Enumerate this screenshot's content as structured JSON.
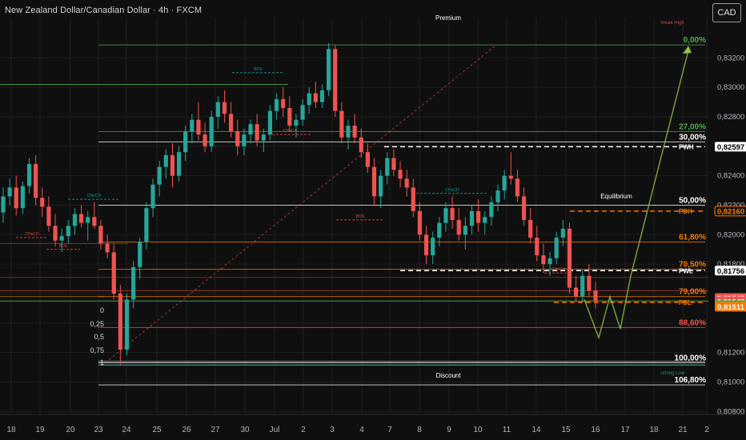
{
  "header": {
    "title": "New Zealand Dollar/Canadian Dollar · 4h · FXCM",
    "currency_button": "CAD"
  },
  "colors": {
    "bull": "#26a69a",
    "bear": "#ef5350",
    "orange": "#f57c00",
    "green_line": "#4caf50",
    "white_line": "#d6d6d6",
    "projection": "#8bc34a"
  },
  "zones": {
    "premium": "Premium",
    "equilibrium": "Equilibrium",
    "discount": "Discount"
  },
  "fib_levels": [
    {
      "label": "0,00%",
      "price": 0.83288,
      "color": "#4caf50"
    },
    {
      "label": "27,00%",
      "price": 0.827,
      "color": "#4caf50"
    },
    {
      "label": "30,00%",
      "price": 0.8263,
      "color": "#ffffff"
    },
    {
      "label": "50,00%",
      "price": 0.822,
      "color": "#ffffff"
    },
    {
      "label": "61,80%",
      "price": 0.8195,
      "color": "#f57c00"
    },
    {
      "label": "70,50%",
      "price": 0.81765,
      "color": "#f57c00"
    },
    {
      "label": "79,00%",
      "price": 0.8158,
      "color": "#f57c00"
    },
    {
      "label": "88,60%",
      "price": 0.8137,
      "color": "#ef5350"
    },
    {
      "label": "100,00%",
      "price": 0.8113,
      "color": "#ffffff"
    },
    {
      "label": "106,80%",
      "price": 0.8098,
      "color": "#ffffff"
    }
  ],
  "liquidity_labels": {
    "weak_high": "Weak High",
    "strong_low": "Strong Low",
    "pwh": "PWH",
    "pdh": "PDH",
    "pwl": "PWL",
    "pdl": "PDL"
  },
  "structure_labels": {
    "bos": "BOS",
    "choch": "CHoCH"
  },
  "left_fib_labels": [
    "0",
    "0,25",
    "0,5",
    "0,75",
    "1"
  ],
  "price_axis": {
    "ticks": [
      "0,83200",
      "0,83000",
      "0,82800",
      "0,82400",
      "0,82200",
      "0,82000",
      "0,81800",
      "0,81200",
      "0,81000",
      "0,80800"
    ]
  },
  "price_badges": [
    {
      "text": "0,82597",
      "price": 0.82597,
      "bg": "#ffffff",
      "fg": "#000000"
    },
    {
      "text": "0,82160",
      "price": 0.8216,
      "bg": "#131313",
      "fg": "#f57c00",
      "border": "#f57c00"
    },
    {
      "text": "0,81756",
      "price": 0.81756,
      "bg": "#ffffff",
      "fg": "#000000"
    },
    {
      "text": "0,81547",
      "price": 0.8157,
      "bg": "#ef5350",
      "fg": "#ffffff",
      "sub": "19:01"
    },
    {
      "text": "0,81547",
      "price": 0.81547,
      "bg": "#ef5350",
      "fg": "#ffffff"
    },
    {
      "text": "0,81522",
      "price": 0.81522,
      "bg": "#4caf50",
      "fg": "#ffffff"
    },
    {
      "text": "0,81511",
      "price": 0.81511,
      "bg": "#f57c00",
      "fg": "#ffffff"
    }
  ],
  "time_axis": [
    "18",
    "19",
    "20",
    "23",
    "24",
    "25",
    "26",
    "27",
    "30",
    "Jul",
    "2",
    "3",
    "4",
    "7",
    "8",
    "9",
    "10",
    "11",
    "14",
    "15",
    "16",
    "17",
    "18",
    "21",
    "2"
  ],
  "chart_data": {
    "type": "candlestick",
    "ylim": [
      0.8078,
      0.8343
    ],
    "candles_note": "approximate 4h candles read from screenshot",
    "candles": [
      [
        0.8215,
        0.8232,
        0.8208,
        0.8226
      ],
      [
        0.8226,
        0.8238,
        0.822,
        0.8232
      ],
      [
        0.8232,
        0.824,
        0.8213,
        0.8218
      ],
      [
        0.8218,
        0.8236,
        0.8214,
        0.8233
      ],
      [
        0.8233,
        0.8252,
        0.8228,
        0.8248
      ],
      [
        0.8248,
        0.8254,
        0.822,
        0.8225
      ],
      [
        0.8225,
        0.8232,
        0.8212,
        0.8219
      ],
      [
        0.8219,
        0.8226,
        0.8202,
        0.8206
      ],
      [
        0.8206,
        0.8214,
        0.8192,
        0.8196
      ],
      [
        0.8196,
        0.8204,
        0.8188,
        0.8199
      ],
      [
        0.8199,
        0.821,
        0.8194,
        0.8206
      ],
      [
        0.8206,
        0.8218,
        0.82,
        0.8214
      ],
      [
        0.8214,
        0.822,
        0.8205,
        0.8208
      ],
      [
        0.8208,
        0.8216,
        0.8196,
        0.8212
      ],
      [
        0.8212,
        0.8222,
        0.8204,
        0.8206
      ],
      [
        0.8206,
        0.821,
        0.819,
        0.8194
      ],
      [
        0.8194,
        0.82,
        0.8184,
        0.8188
      ],
      [
        0.8188,
        0.8194,
        0.8156,
        0.816
      ],
      [
        0.816,
        0.8166,
        0.8112,
        0.8122
      ],
      [
        0.8122,
        0.816,
        0.8118,
        0.8156
      ],
      [
        0.8156,
        0.8182,
        0.815,
        0.8178
      ],
      [
        0.8178,
        0.8198,
        0.817,
        0.8195
      ],
      [
        0.8195,
        0.8222,
        0.819,
        0.8218
      ],
      [
        0.8218,
        0.8238,
        0.8212,
        0.8234
      ],
      [
        0.8234,
        0.825,
        0.8226,
        0.8246
      ],
      [
        0.8246,
        0.8258,
        0.8238,
        0.8254
      ],
      [
        0.8254,
        0.8262,
        0.8232,
        0.824
      ],
      [
        0.824,
        0.826,
        0.8236,
        0.8256
      ],
      [
        0.8256,
        0.8274,
        0.825,
        0.827
      ],
      [
        0.827,
        0.8282,
        0.8262,
        0.8278
      ],
      [
        0.8278,
        0.829,
        0.8264,
        0.8268
      ],
      [
        0.8268,
        0.8276,
        0.8256,
        0.826
      ],
      [
        0.826,
        0.8284,
        0.8256,
        0.828
      ],
      [
        0.828,
        0.8294,
        0.8272,
        0.829
      ],
      [
        0.829,
        0.8298,
        0.8276,
        0.8282
      ],
      [
        0.8282,
        0.829,
        0.8266,
        0.827
      ],
      [
        0.827,
        0.8278,
        0.8254,
        0.826
      ],
      [
        0.826,
        0.8272,
        0.8254,
        0.8268
      ],
      [
        0.8268,
        0.8278,
        0.8262,
        0.8275
      ],
      [
        0.8275,
        0.8282,
        0.826,
        0.8264
      ],
      [
        0.8264,
        0.8272,
        0.8256,
        0.8268
      ],
      [
        0.8268,
        0.8288,
        0.8264,
        0.8284
      ],
      [
        0.8284,
        0.8296,
        0.8278,
        0.8292
      ],
      [
        0.8292,
        0.83,
        0.828,
        0.8286
      ],
      [
        0.8286,
        0.8294,
        0.827,
        0.8274
      ],
      [
        0.8274,
        0.8282,
        0.8266,
        0.8278
      ],
      [
        0.8278,
        0.8292,
        0.8274,
        0.8288
      ],
      [
        0.8288,
        0.83,
        0.8282,
        0.8296
      ],
      [
        0.8296,
        0.8304,
        0.8286,
        0.829
      ],
      [
        0.829,
        0.8302,
        0.8286,
        0.8298
      ],
      [
        0.8298,
        0.833,
        0.8294,
        0.8326
      ],
      [
        0.8326,
        0.8329,
        0.828,
        0.8284
      ],
      [
        0.8284,
        0.829,
        0.8262,
        0.8266
      ],
      [
        0.8266,
        0.8278,
        0.8258,
        0.8274
      ],
      [
        0.8274,
        0.8282,
        0.8262,
        0.8266
      ],
      [
        0.8266,
        0.8272,
        0.8252,
        0.8256
      ],
      [
        0.8256,
        0.8262,
        0.8242,
        0.8246
      ],
      [
        0.8246,
        0.8252,
        0.822,
        0.8226
      ],
      [
        0.8226,
        0.8244,
        0.8218,
        0.824
      ],
      [
        0.824,
        0.8256,
        0.8234,
        0.8252
      ],
      [
        0.8252,
        0.8258,
        0.824,
        0.8244
      ],
      [
        0.8244,
        0.825,
        0.8232,
        0.8238
      ],
      [
        0.8238,
        0.8244,
        0.8226,
        0.8232
      ],
      [
        0.8232,
        0.8238,
        0.8212,
        0.8216
      ],
      [
        0.8216,
        0.8222,
        0.8196,
        0.82
      ],
      [
        0.82,
        0.8206,
        0.818,
        0.8186
      ],
      [
        0.8186,
        0.8202,
        0.818,
        0.8198
      ],
      [
        0.8198,
        0.8212,
        0.8192,
        0.8208
      ],
      [
        0.8208,
        0.8222,
        0.8202,
        0.8218
      ],
      [
        0.8218,
        0.8226,
        0.8204,
        0.821
      ],
      [
        0.821,
        0.8218,
        0.8196,
        0.82
      ],
      [
        0.82,
        0.8212,
        0.819,
        0.8206
      ],
      [
        0.8206,
        0.822,
        0.82,
        0.8216
      ],
      [
        0.8216,
        0.8224,
        0.8202,
        0.8208
      ],
      [
        0.8208,
        0.8216,
        0.82,
        0.8212
      ],
      [
        0.8212,
        0.8226,
        0.8206,
        0.8222
      ],
      [
        0.8222,
        0.8234,
        0.8216,
        0.823
      ],
      [
        0.823,
        0.8244,
        0.8224,
        0.824
      ],
      [
        0.824,
        0.8256,
        0.8234,
        0.8238
      ],
      [
        0.8238,
        0.8244,
        0.8222,
        0.8226
      ],
      [
        0.8226,
        0.8232,
        0.8206,
        0.821
      ],
      [
        0.821,
        0.8218,
        0.8194,
        0.8198
      ],
      [
        0.8198,
        0.8206,
        0.8182,
        0.8186
      ],
      [
        0.8186,
        0.8194,
        0.8174,
        0.818
      ],
      [
        0.818,
        0.8188,
        0.8172,
        0.8184
      ],
      [
        0.8184,
        0.8202,
        0.818,
        0.8198
      ],
      [
        0.8198,
        0.821,
        0.8192,
        0.8204
      ],
      [
        0.8204,
        0.8208,
        0.816,
        0.8164
      ],
      [
        0.8164,
        0.8172,
        0.8154,
        0.8158
      ],
      [
        0.8158,
        0.8176,
        0.8154,
        0.8172
      ],
      [
        0.8172,
        0.818,
        0.8158,
        0.8162
      ],
      [
        0.8162,
        0.8168,
        0.815,
        0.8155
      ]
    ]
  }
}
